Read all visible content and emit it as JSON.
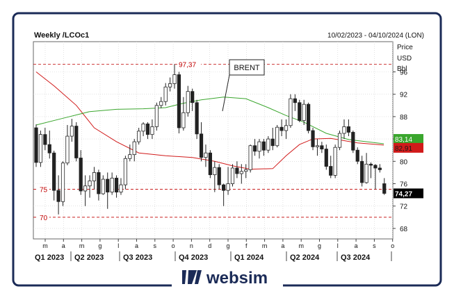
{
  "chart_data": {
    "type": "candlestick",
    "title": "Weekly /LCOc1",
    "date_range": "10/02/2023 - 04/10/2024 (LON)",
    "yaxis_title": [
      "Price",
      "USD",
      "Bbl"
    ],
    "ylim": [
      66,
      100
    ],
    "y_ticks": [
      96,
      92,
      88,
      84,
      80,
      76,
      72,
      68
    ],
    "y_tick_labels": [
      "96",
      "92",
      "88",
      "84",
      "80",
      "76",
      "72",
      "68"
    ],
    "month_ticks": [
      "m",
      "a",
      "m",
      "g",
      "l",
      "a",
      "s",
      "o",
      "n",
      "d",
      "g",
      "f",
      "m",
      "a",
      "m",
      "g",
      "l",
      "a",
      "s",
      "o"
    ],
    "quarter_labels": [
      "Q1 2023",
      "Q2 2023",
      "Q3 2023",
      "Q4 2023",
      "Q1 2024",
      "Q2 2024",
      "Q3 2024"
    ],
    "levels": [
      {
        "value": 97.37,
        "label": "97,37",
        "color": "#c00000"
      },
      {
        "value": 75,
        "label": "75",
        "color": "#c00000"
      },
      {
        "value": 70,
        "label": "70",
        "color": "#c00000"
      }
    ],
    "last_price": {
      "value": 74.27,
      "label": "74,27"
    },
    "ma_labels": [
      {
        "name": "MA green",
        "value": 83.14,
        "label": "83,14",
        "color": "#3aa62d"
      },
      {
        "name": "MA red",
        "value": 82.91,
        "label": "82,91",
        "color": "#d11a1a"
      }
    ],
    "annotation": {
      "text": "BRENT"
    },
    "candles_ohlc": [
      [
        86.0,
        86.6,
        79.0,
        79.8
      ],
      [
        79.8,
        85.5,
        79.0,
        84.8
      ],
      [
        84.8,
        86.0,
        82.0,
        83.0
      ],
      [
        83.0,
        85.5,
        80.5,
        81.5
      ],
      [
        81.5,
        81.9,
        73.0,
        74.8
      ],
      [
        74.8,
        77.5,
        70.5,
        72.8
      ],
      [
        72.8,
        80.0,
        72.0,
        79.7
      ],
      [
        79.7,
        86.5,
        79.3,
        84.5
      ],
      [
        84.5,
        87.6,
        83.5,
        86.3
      ],
      [
        86.3,
        87.0,
        80.0,
        80.6
      ],
      [
        80.6,
        82.0,
        74.0,
        74.7
      ],
      [
        74.7,
        77.5,
        72.0,
        75.6
      ],
      [
        75.6,
        77.5,
        73.5,
        76.5
      ],
      [
        76.5,
        79.0,
        75.0,
        78.0
      ],
      [
        78.0,
        78.5,
        73.0,
        74.2
      ],
      [
        74.2,
        77.5,
        74.0,
        76.8
      ],
      [
        76.8,
        78.0,
        71.5,
        74.5
      ],
      [
        74.5,
        78.0,
        74.0,
        77.0
      ],
      [
        77.0,
        77.5,
        73.5,
        74.5
      ],
      [
        74.5,
        77.0,
        74.0,
        75.8
      ],
      [
        75.8,
        81.0,
        75.0,
        80.5
      ],
      [
        80.5,
        83.0,
        80.0,
        81.2
      ],
      [
        81.2,
        84.0,
        80.0,
        83.5
      ],
      [
        83.5,
        86.0,
        83.0,
        85.4
      ],
      [
        85.4,
        87.0,
        84.5,
        86.7
      ],
      [
        86.7,
        87.0,
        84.0,
        84.8
      ],
      [
        84.8,
        87.5,
        84.0,
        86.2
      ],
      [
        86.2,
        90.5,
        85.5,
        90.0
      ],
      [
        90.0,
        91.5,
        89.5,
        90.7
      ],
      [
        90.7,
        94.0,
        90.0,
        93.3
      ],
      [
        93.3,
        95.0,
        92.5,
        93.9
      ],
      [
        93.9,
        97.37,
        93.0,
        95.5
      ],
      [
        95.5,
        96.0,
        85.0,
        86.0
      ],
      [
        86.0,
        91.5,
        85.5,
        88.7
      ],
      [
        88.7,
        93.5,
        88.0,
        92.5
      ],
      [
        92.5,
        93.0,
        89.0,
        90.5
      ],
      [
        90.5,
        91.0,
        84.0,
        84.9
      ],
      [
        84.9,
        87.0,
        80.0,
        80.7
      ],
      [
        80.7,
        83.0,
        79.0,
        81.5
      ],
      [
        81.5,
        82.0,
        77.0,
        77.6
      ],
      [
        77.6,
        80.0,
        74.5,
        78.9
      ],
      [
        78.9,
        79.5,
        75.0,
        75.8
      ],
      [
        75.8,
        76.0,
        72.0,
        74.8
      ],
      [
        74.8,
        79.0,
        74.0,
        76.0
      ],
      [
        76.0,
        79.5,
        75.5,
        78.8
      ],
      [
        78.8,
        80.0,
        77.0,
        77.8
      ],
      [
        77.8,
        79.5,
        76.0,
        78.2
      ],
      [
        78.2,
        79.5,
        77.0,
        78.5
      ],
      [
        78.5,
        83.0,
        78.0,
        82.8
      ],
      [
        82.8,
        84.0,
        81.0,
        81.8
      ],
      [
        81.8,
        84.0,
        80.5,
        83.5
      ],
      [
        83.5,
        84.0,
        81.0,
        82.0
      ],
      [
        82.0,
        84.5,
        81.5,
        84.0
      ],
      [
        84.0,
        86.0,
        82.0,
        82.8
      ],
      [
        82.8,
        86.5,
        82.5,
        86.1
      ],
      [
        86.1,
        87.5,
        84.5,
        85.5
      ],
      [
        85.5,
        87.5,
        84.0,
        86.4
      ],
      [
        86.4,
        92.0,
        86.0,
        91.2
      ],
      [
        91.2,
        92.0,
        89.0,
        90.5
      ],
      [
        90.5,
        91.0,
        87.0,
        87.3
      ],
      [
        87.3,
        91.0,
        86.5,
        90.2
      ],
      [
        90.2,
        90.5,
        85.0,
        85.5
      ],
      [
        85.5,
        86.0,
        82.0,
        82.6
      ],
      [
        82.6,
        84.0,
        81.0,
        82.8
      ],
      [
        82.8,
        83.5,
        81.5,
        82.2
      ],
      [
        82.2,
        83.0,
        78.5,
        79.1
      ],
      [
        79.1,
        81.0,
        77.0,
        77.5
      ],
      [
        77.5,
        83.0,
        77.0,
        82.5
      ],
      [
        82.5,
        85.5,
        82.0,
        85.0
      ],
      [
        85.0,
        87.5,
        84.0,
        86.2
      ],
      [
        86.2,
        87.5,
        84.5,
        85.2
      ],
      [
        85.2,
        85.5,
        81.5,
        82.0
      ],
      [
        82.0,
        82.5,
        79.5,
        80.0
      ],
      [
        80.0,
        81.0,
        75.5,
        76.2
      ],
      [
        76.2,
        81.5,
        76.0,
        79.5
      ],
      [
        79.5,
        79.8,
        77.0,
        79.3
      ],
      [
        79.3,
        79.5,
        75.0,
        78.8
      ],
      [
        78.8,
        79.5,
        78.0,
        78.5
      ],
      [
        76.0,
        77.0,
        74.0,
        74.27
      ]
    ],
    "ma_green_points": [
      [
        86.5,
        0
      ],
      [
        87.7,
        6
      ],
      [
        88.9,
        12
      ],
      [
        89.3,
        18
      ],
      [
        89.4,
        24
      ],
      [
        89.6,
        29
      ],
      [
        90.4,
        33
      ],
      [
        91.0,
        37
      ],
      [
        91.5,
        42
      ],
      [
        91.2,
        47
      ],
      [
        89.6,
        52
      ],
      [
        88.2,
        56
      ],
      [
        87.0,
        60
      ],
      [
        85.0,
        65
      ],
      [
        83.9,
        70
      ],
      [
        83.14,
        77.9
      ]
    ],
    "ma_red_points": [
      [
        96.0,
        0
      ],
      [
        93.5,
        4
      ],
      [
        90.0,
        9
      ],
      [
        86.0,
        13
      ],
      [
        83.5,
        18
      ],
      [
        81.5,
        23
      ],
      [
        81.0,
        29
      ],
      [
        80.7,
        35
      ],
      [
        80.0,
        40
      ],
      [
        79.2,
        44
      ],
      [
        78.6,
        48
      ],
      [
        78.7,
        53
      ],
      [
        81.0,
        56
      ],
      [
        83.0,
        59
      ],
      [
        84.0,
        62
      ],
      [
        84.1,
        66
      ],
      [
        83.3,
        72
      ],
      [
        82.91,
        77.9
      ]
    ]
  }
}
